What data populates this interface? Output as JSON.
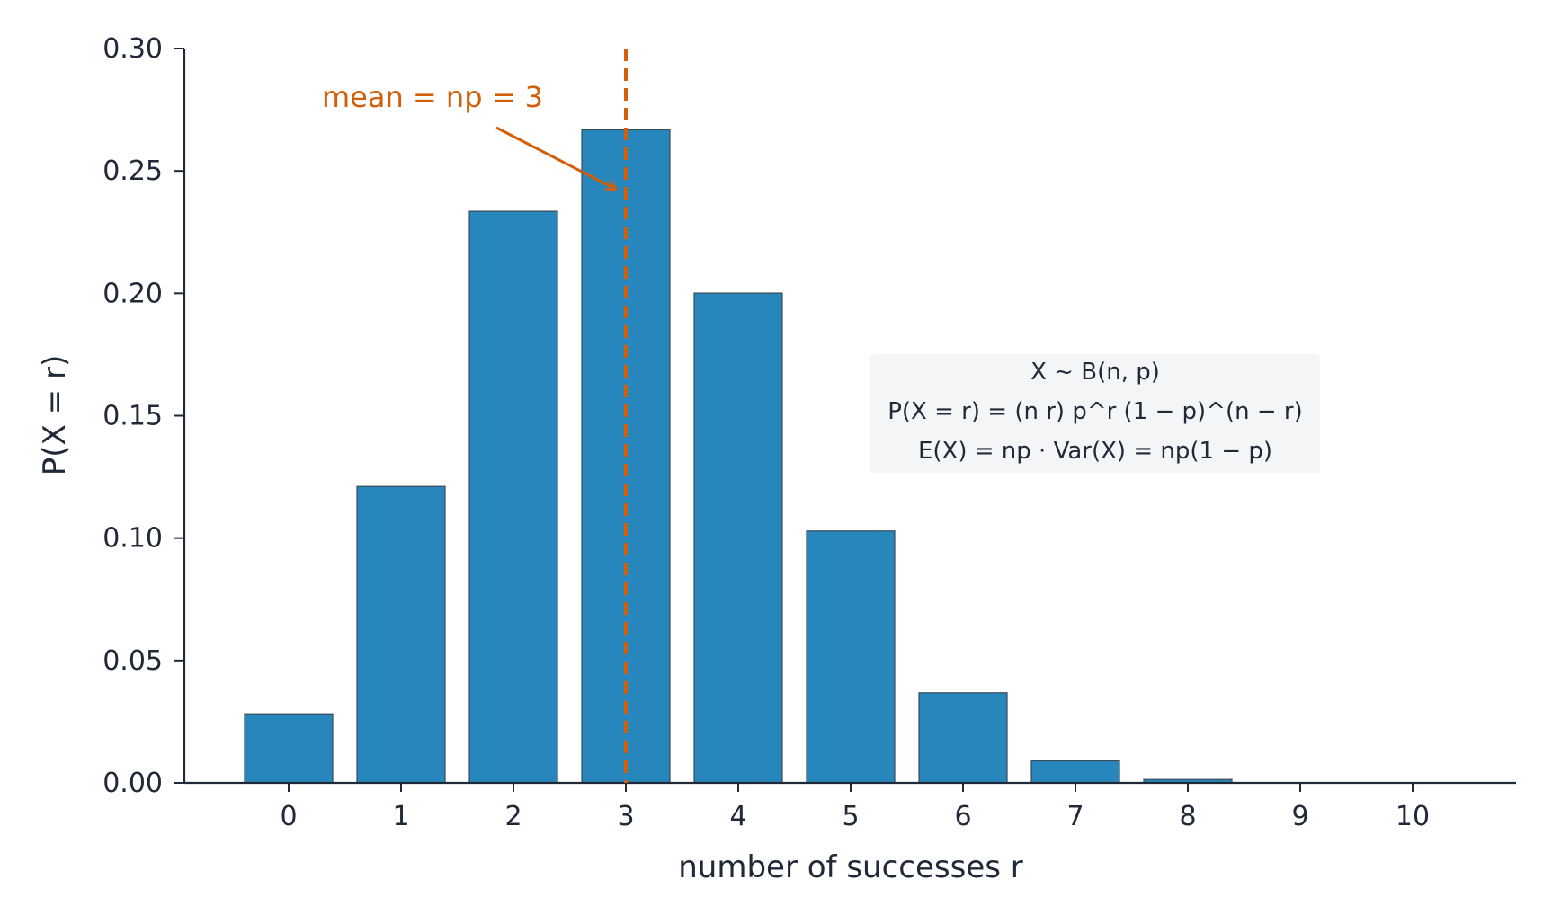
{
  "chart_data": {
    "type": "bar",
    "categories": [
      "0",
      "1",
      "2",
      "3",
      "4",
      "5",
      "6",
      "7",
      "8",
      "9",
      "10"
    ],
    "x": [
      0,
      1,
      2,
      3,
      4,
      5,
      6,
      7,
      8,
      9,
      10
    ],
    "values": [
      0.0282,
      0.1211,
      0.2335,
      0.2668,
      0.2001,
      0.1029,
      0.0368,
      0.009,
      0.0014,
      0.0001,
      0.0
    ],
    "xlabel": "number of successes r",
    "ylabel": "P(X = r)",
    "ylim": [
      0,
      0.3
    ],
    "yticks": [
      "0.00",
      "0.05",
      "0.10",
      "0.15",
      "0.20",
      "0.25",
      "0.30"
    ],
    "ytick_values": [
      0,
      0.05,
      0.1,
      0.15,
      0.2,
      0.25,
      0.3
    ],
    "xticks": [
      "0",
      "1",
      "2",
      "3",
      "4",
      "5",
      "6",
      "7",
      "8",
      "9",
      "10"
    ],
    "mean_line": {
      "x": 3,
      "label": "mean = np = 3"
    },
    "info_box": {
      "line1": "X ~ B(n, p)",
      "line2": "P(X = r) = (n r) p^r (1 − p)^(n − r)",
      "line3": "E(X) = np · Var(X) = np(1 − p)"
    },
    "grid": false,
    "colors": {
      "bar": "#2787bc",
      "bar_edge": "#3b4a55",
      "mean": "#d35f0a",
      "axis": "#1f2937",
      "box_bg": "#f4f5f7"
    }
  }
}
